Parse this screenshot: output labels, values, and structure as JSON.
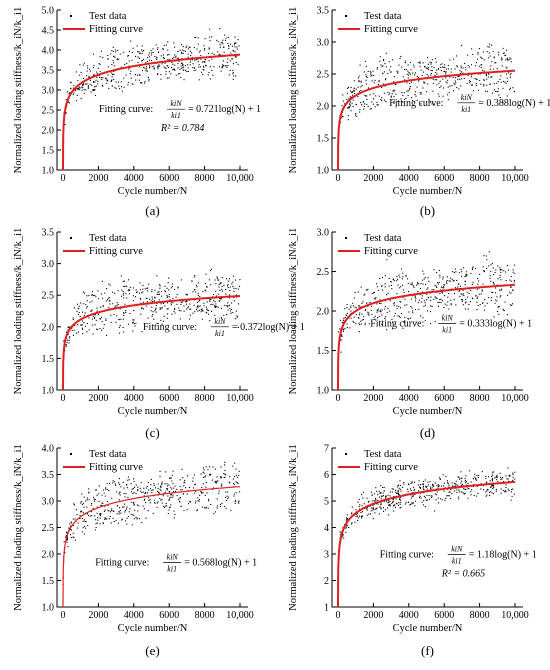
{
  "figure": {
    "ylabel": "Normalized loading stiffness/k_iN/k_i1",
    "legend": {
      "test_data": "Test data",
      "fitting_curve": "Fitting curve"
    },
    "fitting_prefix": "Fitting curve:"
  },
  "colors": {
    "points": "#000000",
    "curve": "#e02020",
    "axis": "#000000"
  },
  "chart_data": [
    {
      "type": "scatter",
      "panel": "(a)",
      "xlabel": "Cycle number/N",
      "xlim": [
        0,
        10000
      ],
      "ylim": [
        1.0,
        5.0
      ],
      "xticks": [
        "0",
        "2000",
        "4000",
        "6000",
        "8000",
        "10,000"
      ],
      "yticks": [
        "1.0",
        "1.5",
        "2.0",
        "2.5",
        "3.0",
        "3.5",
        "4.0",
        "4.5",
        "5.0"
      ],
      "fit": {
        "a": 0.721,
        "b": 1,
        "equation": "= 0.721log(N) + 1",
        "r2": "R² = 0.784"
      },
      "band": {
        "half_width": 0.35,
        "noise": 0.12
      },
      "series": [
        {
          "name": "Test data",
          "role": "points"
        },
        {
          "name": "Fitting curve",
          "role": "fit"
        }
      ]
    },
    {
      "type": "scatter",
      "panel": "(b)",
      "xlabel": "Cycle number/N",
      "xlim": [
        0,
        10000
      ],
      "ylim": [
        1.0,
        3.5
      ],
      "xticks": [
        "0",
        "2000",
        "4000",
        "6000",
        "8000",
        "10,000"
      ],
      "yticks": [
        "1.0",
        "1.5",
        "2.0",
        "2.5",
        "3.0",
        "3.5"
      ],
      "fit": {
        "a": 0.388,
        "b": 1,
        "equation": "= 0.388log(N) + 1",
        "r2": ""
      },
      "band": {
        "half_width": 0.25,
        "noise": 0.09
      },
      "series": [
        {
          "name": "Test data",
          "role": "points"
        },
        {
          "name": "Fitting curve",
          "role": "fit"
        }
      ]
    },
    {
      "type": "scatter",
      "panel": "(c)",
      "xlabel": "Cycle number/N",
      "xlim": [
        0,
        10000
      ],
      "ylim": [
        1.0,
        3.5
      ],
      "xticks": [
        "0",
        "2000",
        "4000",
        "6000",
        "8000",
        "10,000"
      ],
      "yticks": [
        "1.0",
        "1.5",
        "2.0",
        "2.5",
        "3.0",
        "3.5"
      ],
      "fit": {
        "a": 0.372,
        "b": 1,
        "equation": "= 0.372log(N) + 1",
        "r2": ""
      },
      "band": {
        "half_width": 0.25,
        "noise": 0.08
      },
      "series": [
        {
          "name": "Test data",
          "role": "points"
        },
        {
          "name": "Fitting curve",
          "role": "fit"
        }
      ]
    },
    {
      "type": "scatter",
      "panel": "(d)",
      "xlabel": "Cycle number/N",
      "xlim": [
        0,
        10000
      ],
      "ylim": [
        1.0,
        3.0
      ],
      "xticks": [
        "0",
        "2000",
        "4000",
        "6000",
        "8000",
        "10,000"
      ],
      "yticks": [
        "1.0",
        "1.5",
        "2.0",
        "2.5",
        "3.0"
      ],
      "fit": {
        "a": 0.333,
        "b": 1,
        "equation": "= 0.333log(N) + 1",
        "r2": ""
      },
      "band": {
        "half_width": 0.2,
        "noise": 0.09
      },
      "series": [
        {
          "name": "Test data",
          "role": "points"
        },
        {
          "name": "Fitting curve",
          "role": "fit"
        }
      ]
    },
    {
      "type": "scatter",
      "panel": "(e)",
      "xlabel": "Cycle number/N",
      "xlim": [
        0,
        10000
      ],
      "ylim": [
        1.0,
        4.0
      ],
      "xticks": [
        "0",
        "2000",
        "4000",
        "6000",
        "8000",
        "10,000"
      ],
      "yticks": [
        "1.0",
        "1.5",
        "2.0",
        "2.5",
        "3.0",
        "3.5",
        "4.0"
      ],
      "fit": {
        "a": 0.568,
        "b": 1,
        "equation": "= 0.568log(N) + 1",
        "r2": ""
      },
      "band": {
        "half_width": 0.3,
        "noise": 0.1
      },
      "series": [
        {
          "name": "Test data",
          "role": "points"
        },
        {
          "name": "Fitting curve",
          "role": "fit"
        }
      ]
    },
    {
      "type": "scatter",
      "panel": "(f)",
      "xlabel": "Cycle number/N",
      "xlim": [
        0,
        10000
      ],
      "ylim": [
        1,
        7
      ],
      "xticks": [
        "0",
        "2000",
        "4000",
        "6000",
        "8000",
        "10,000"
      ],
      "yticks": [
        "1",
        "2",
        "3",
        "4",
        "5",
        "6",
        "7"
      ],
      "fit": {
        "a": 1.18,
        "b": 1,
        "equation": "= 1.18log(N) + 1",
        "r2": "R² = 0.665"
      },
      "band": {
        "half_width": 0.3,
        "noise": 0.15
      },
      "series": [
        {
          "name": "Test data",
          "role": "points"
        },
        {
          "name": "Fitting curve",
          "role": "fit"
        }
      ]
    }
  ]
}
